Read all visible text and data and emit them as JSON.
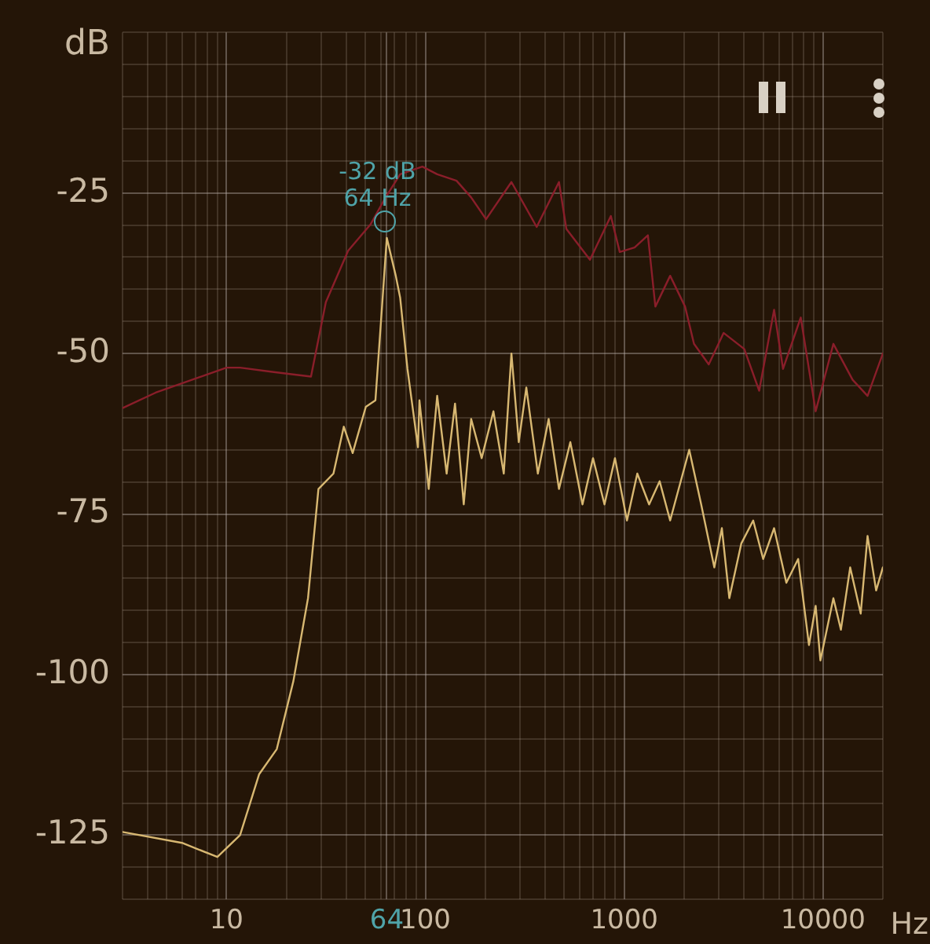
{
  "chart_data": {
    "type": "line",
    "ylabel": "dB",
    "xlabel": "Hz",
    "log": "x",
    "grid": true,
    "legend": false,
    "marker": "none",
    "line_style": "solid",
    "xlim": [
      3,
      20000
    ],
    "ylim": [
      -135,
      0
    ],
    "xticks": [
      {
        "value": 3,
        "label": null
      },
      {
        "value": 4,
        "label": null
      },
      {
        "value": 5,
        "label": null
      },
      {
        "value": 6,
        "label": null
      },
      {
        "value": 7,
        "label": null
      },
      {
        "value": 8,
        "label": null
      },
      {
        "value": 9,
        "label": null
      },
      10,
      {
        "value": 20,
        "label": null
      },
      {
        "value": 30,
        "label": null
      },
      {
        "value": 40,
        "label": null
      },
      {
        "value": 50,
        "label": null
      },
      {
        "value": 60,
        "label": null
      },
      {
        "value": 64,
        "label": "64"
      },
      {
        "value": 70,
        "label": null
      },
      {
        "value": 80,
        "label": null
      },
      {
        "value": 90,
        "label": null
      },
      100,
      {
        "value": 200,
        "label": null
      },
      {
        "value": 300,
        "label": null
      },
      {
        "value": 400,
        "label": null
      },
      {
        "value": 500,
        "label": null
      },
      {
        "value": 600,
        "label": null
      },
      {
        "value": 700,
        "label": null
      },
      {
        "value": 800,
        "label": null
      },
      {
        "value": 900,
        "label": null
      },
      1000,
      {
        "value": 2000,
        "label": null
      },
      {
        "value": 3000,
        "label": null
      },
      {
        "value": 4000,
        "label": null
      },
      {
        "value": 5000,
        "label": null
      },
      {
        "value": 6000,
        "label": null
      },
      {
        "value": 7000,
        "label": null
      },
      {
        "value": 8000,
        "label": null
      },
      {
        "value": 9000,
        "label": null
      },
      10000,
      {
        "value": 20000,
        "label": null
      }
    ],
    "yticks": [
      {
        "value": -135,
        "label": null
      },
      {
        "value": -130,
        "label": null
      },
      -125,
      {
        "value": -120,
        "label": null
      },
      {
        "value": -115,
        "label": null
      },
      {
        "value": -110,
        "label": null
      },
      {
        "value": -105,
        "label": null
      },
      -100,
      {
        "value": -95,
        "label": null
      },
      {
        "value": -90,
        "label": null
      },
      {
        "value": -85,
        "label": null
      },
      {
        "value": -80,
        "label": null
      },
      -75,
      {
        "value": -70,
        "label": null
      },
      {
        "value": -65,
        "label": null
      },
      {
        "value": -60,
        "label": null
      },
      {
        "value": -55,
        "label": null
      },
      -50,
      {
        "value": -45,
        "label": null
      },
      {
        "value": -40,
        "label": null
      },
      {
        "value": -35,
        "label": null
      },
      {
        "value": -30,
        "label": null
      },
      -25,
      {
        "value": -20,
        "label": null
      },
      {
        "value": -15,
        "label": null
      },
      {
        "value": -10,
        "label": null
      },
      {
        "value": -5,
        "label": null
      },
      {
        "value": 0,
        "label": null
      }
    ],
    "annotations": [
      {
        "text": "-32 dB\n64 Hz",
        "x": 64,
        "y": -32
      }
    ],
    "series": [
      {
        "color": "#8a1e2a",
        "x": [
          3.0,
          4.4,
          10,
          11.7,
          17.3,
          26.6,
          31.6,
          40.9,
          53,
          63.1,
          74.7,
          96.6,
          114.7,
          143.5,
          170,
          202,
          271,
          363,
          470,
          512,
          673,
          857,
          950,
          1128,
          1316,
          1435,
          1703,
          2024,
          2244,
          2663,
          3162,
          4018,
          4775,
          5675,
          6295,
          7727,
          9183,
          11275,
          14090,
          16750,
          20000
        ],
        "values": [
          -58.5,
          -56.1,
          -52.2,
          -52.2,
          -52.9,
          -53.6,
          -42,
          -34,
          -29.9,
          -25.7,
          -22.1,
          -20.9,
          -22.1,
          -23.1,
          -25.7,
          -29.1,
          -23.3,
          -30.3,
          -23.3,
          -30.6,
          -35.4,
          -28.6,
          -34.2,
          -33.5,
          -31.6,
          -42.7,
          -37.9,
          -42.7,
          -48.5,
          -51.7,
          -46.8,
          -49.3,
          -55.8,
          -43.2,
          -52.4,
          -44.4,
          -59.0,
          -48.5,
          -54.1,
          -56.6,
          -50.0
        ]
      },
      {
        "color": "#d8b872",
        "x": [
          3.0,
          5.97,
          9.0,
          11.7,
          14.6,
          17.9,
          21.7,
          25.7,
          29.0,
          34.5,
          38.9,
          43.1,
          50.2,
          56.1,
          61.0,
          64,
          71.0,
          74.7,
          81.3,
          91.8,
          93.4,
          104,
          114.7,
          128,
          141,
          156,
          170,
          192,
          220,
          248,
          271,
          295,
          322,
          368,
          417,
          470,
          536,
          617,
          697,
          796,
          899,
          1033,
          1164,
          1335,
          1508,
          1703,
          2124,
          2439,
          2840,
          3100,
          3379,
          3880,
          4455,
          5000,
          5675,
          6540,
          7500,
          8500,
          9183,
          9700,
          11275,
          12300,
          13700,
          15470,
          16750,
          18500,
          20000
        ],
        "values": [
          -124.5,
          -126.2,
          -128.4,
          -125,
          -115.5,
          -111.6,
          -101,
          -88.1,
          -71.1,
          -68.7,
          -61.4,
          -65.5,
          -58.3,
          -57.3,
          -41.3,
          -32,
          -37.9,
          -41.3,
          -52.4,
          -64.6,
          -57.3,
          -71.1,
          -56.6,
          -68.7,
          -57.8,
          -73.5,
          -60.2,
          -66.3,
          -59.0,
          -68.7,
          -50.0,
          -63.8,
          -55.3,
          -68.7,
          -60.2,
          -71.1,
          -63.8,
          -73.5,
          -66.3,
          -73.5,
          -66.3,
          -76.0,
          -68.7,
          -73.5,
          -69.9,
          -76.0,
          -65.0,
          -73.5,
          -83.3,
          -77.2,
          -88.1,
          -79.6,
          -76.0,
          -82.0,
          -77.2,
          -85.7,
          -82.0,
          -95.4,
          -89.3,
          -97.8,
          -88.1,
          -93.0,
          -83.3,
          -90.5,
          -78.4,
          -86.9,
          -83.3
        ]
      }
    ]
  }
}
